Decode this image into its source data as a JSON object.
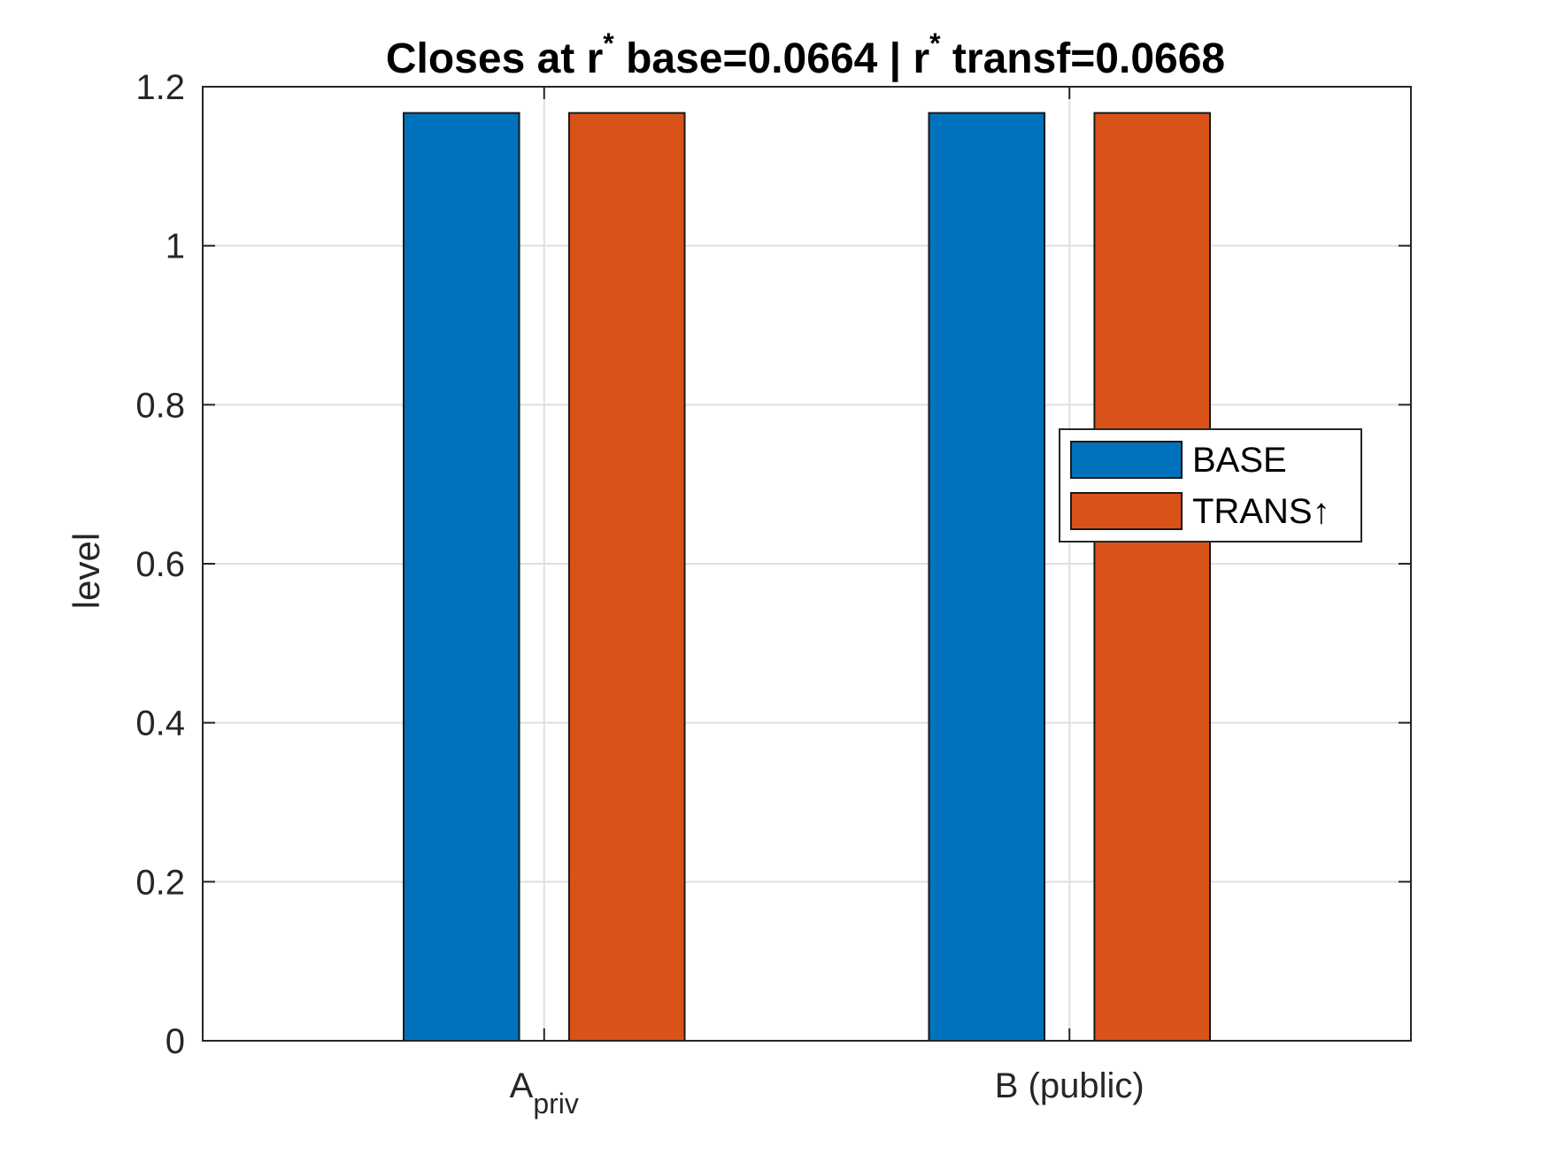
{
  "chart_data": {
    "type": "bar",
    "title_parts": {
      "a": "Closes at r",
      "star": "*",
      "b": " base=0.0664 | r",
      "c": " transf=0.0668"
    },
    "xlabel": "",
    "ylabel": "level",
    "ylim": [
      0,
      1.2
    ],
    "yticks": [
      0,
      0.2,
      0.4,
      0.6,
      0.8,
      1,
      1.2
    ],
    "ytick_labels": [
      "0",
      "0.2",
      "0.4",
      "0.6",
      "0.8",
      "1",
      "1.2"
    ],
    "categories": [
      {
        "main": "A",
        "sub": "priv"
      },
      {
        "main": "B (public)",
        "sub": ""
      }
    ],
    "series": [
      {
        "name": "BASE",
        "color": "#0072BD",
        "values": [
          1.167,
          1.167
        ]
      },
      {
        "name": "TRANS↑",
        "color": "#D95319",
        "values": [
          1.167,
          1.167
        ]
      }
    ],
    "grid": true,
    "legend_placement": "right-middle"
  }
}
